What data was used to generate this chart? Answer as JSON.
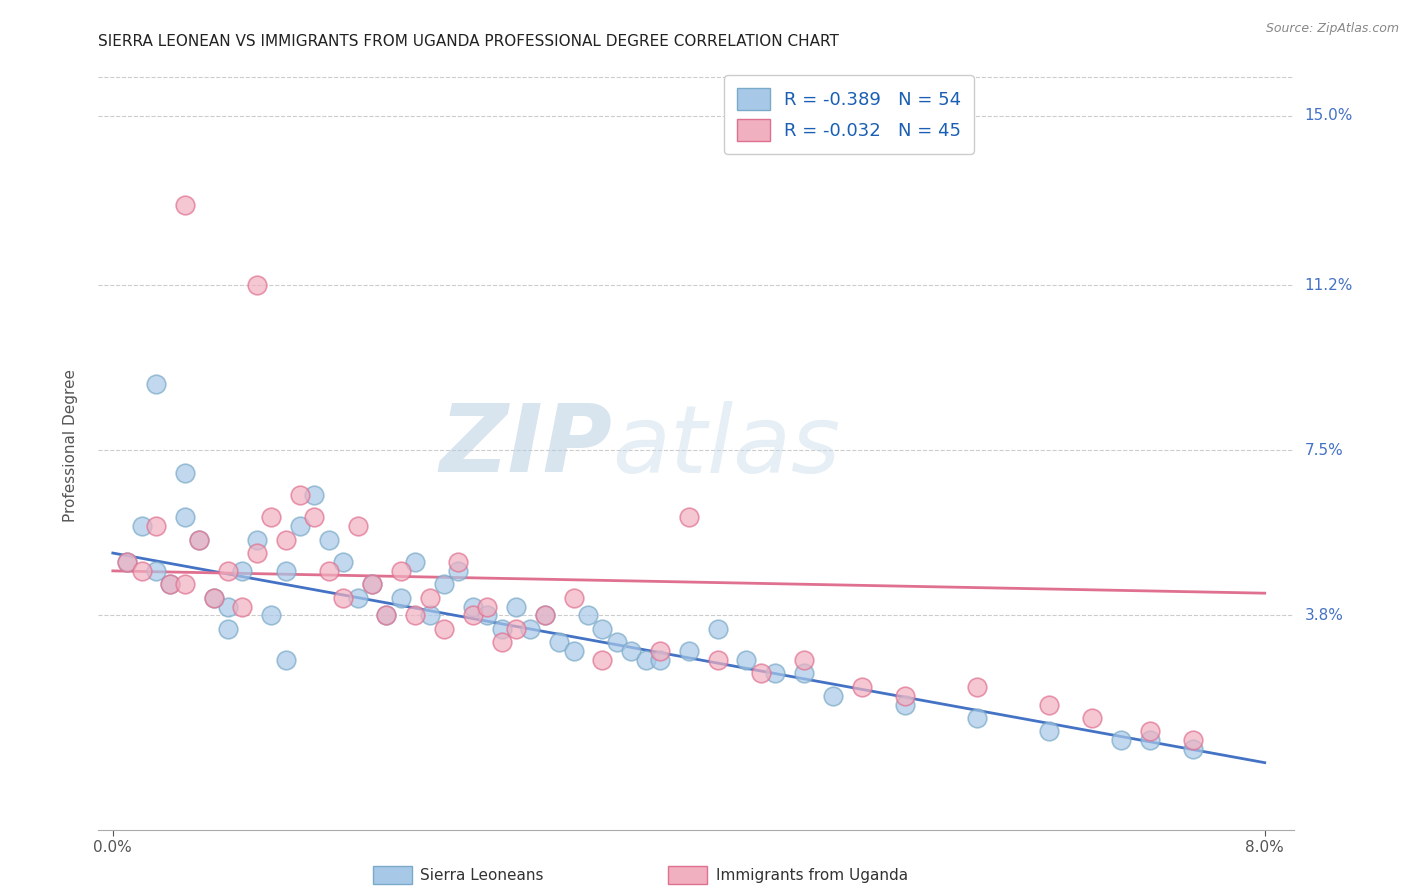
{
  "title": "SIERRA LEONEAN VS IMMIGRANTS FROM UGANDA PROFESSIONAL DEGREE CORRELATION CHART",
  "source": "Source: ZipAtlas.com",
  "ylabel": "Professional Degree",
  "yticks_labels": [
    "15.0%",
    "11.2%",
    "7.5%",
    "3.8%"
  ],
  "ytick_vals": [
    0.15,
    0.112,
    0.075,
    0.038
  ],
  "xmin": 0.0,
  "xmax": 0.08,
  "ymin": -0.01,
  "ymax": 0.162,
  "sl_color": "#a8c8e8",
  "ug_color": "#f0b0c0",
  "sl_edge_color": "#7aaac8",
  "ug_edge_color": "#e07090",
  "blue_line_color": "#4472c4",
  "pink_line_color": "#e07090",
  "legend_sl": "R = -0.389   N = 54",
  "legend_ug": "R = -0.032   N = 45",
  "watermark_zip": "ZIP",
  "watermark_atlas": "atlas",
  "watermark_color_zip": "#c8d8ec",
  "watermark_color_atlas": "#c8d8ec",
  "title_fontsize": 11,
  "axis_label_color": "#555555",
  "right_tick_color": "#4472c4",
  "sl_x": [
    0.001,
    0.002,
    0.003,
    0.004,
    0.005,
    0.006,
    0.007,
    0.008,
    0.009,
    0.01,
    0.011,
    0.012,
    0.013,
    0.014,
    0.015,
    0.016,
    0.017,
    0.018,
    0.019,
    0.02,
    0.021,
    0.022,
    0.023,
    0.024,
    0.025,
    0.026,
    0.027,
    0.028,
    0.029,
    0.03,
    0.031,
    0.032,
    0.033,
    0.034,
    0.035,
    0.036,
    0.037,
    0.038,
    0.04,
    0.042,
    0.044,
    0.046,
    0.048,
    0.05,
    0.055,
    0.06,
    0.065,
    0.07,
    0.072,
    0.075,
    0.003,
    0.005,
    0.008,
    0.012
  ],
  "sl_y": [
    0.05,
    0.058,
    0.048,
    0.045,
    0.06,
    0.055,
    0.042,
    0.04,
    0.048,
    0.055,
    0.038,
    0.048,
    0.058,
    0.065,
    0.055,
    0.05,
    0.042,
    0.045,
    0.038,
    0.042,
    0.05,
    0.038,
    0.045,
    0.048,
    0.04,
    0.038,
    0.035,
    0.04,
    0.035,
    0.038,
    0.032,
    0.03,
    0.038,
    0.035,
    0.032,
    0.03,
    0.028,
    0.028,
    0.03,
    0.035,
    0.028,
    0.025,
    0.025,
    0.02,
    0.018,
    0.015,
    0.012,
    0.01,
    0.01,
    0.008,
    0.09,
    0.07,
    0.035,
    0.028
  ],
  "ug_x": [
    0.001,
    0.002,
    0.003,
    0.004,
    0.005,
    0.006,
    0.007,
    0.008,
    0.009,
    0.01,
    0.011,
    0.012,
    0.013,
    0.014,
    0.015,
    0.016,
    0.017,
    0.018,
    0.019,
    0.02,
    0.021,
    0.022,
    0.023,
    0.024,
    0.025,
    0.026,
    0.027,
    0.028,
    0.03,
    0.032,
    0.034,
    0.038,
    0.042,
    0.045,
    0.048,
    0.052,
    0.055,
    0.06,
    0.065,
    0.068,
    0.072,
    0.075,
    0.005,
    0.01,
    0.04
  ],
  "ug_y": [
    0.05,
    0.048,
    0.058,
    0.045,
    0.045,
    0.055,
    0.042,
    0.048,
    0.04,
    0.052,
    0.06,
    0.055,
    0.065,
    0.06,
    0.048,
    0.042,
    0.058,
    0.045,
    0.038,
    0.048,
    0.038,
    0.042,
    0.035,
    0.05,
    0.038,
    0.04,
    0.032,
    0.035,
    0.038,
    0.042,
    0.028,
    0.03,
    0.028,
    0.025,
    0.028,
    0.022,
    0.02,
    0.022,
    0.018,
    0.015,
    0.012,
    0.01,
    0.13,
    0.112,
    0.06
  ],
  "sl_line_x0": 0.0,
  "sl_line_y0": 0.052,
  "sl_line_x1": 0.08,
  "sl_line_y1": 0.005,
  "ug_line_x0": 0.0,
  "ug_line_y0": 0.048,
  "ug_line_x1": 0.08,
  "ug_line_y1": 0.043
}
